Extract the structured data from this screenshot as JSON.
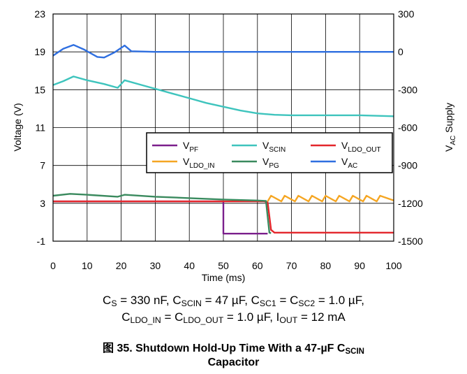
{
  "chart_data": {
    "type": "line",
    "xlabel": "Time (ms)",
    "ylabel": "Voltage (V)",
    "y2label": {
      "main": "V",
      "sub": "AC",
      "rest": " Supply"
    },
    "xlim": [
      0,
      100
    ],
    "ylim": [
      -1,
      23
    ],
    "y2lim": [
      -1500,
      300
    ],
    "x_ticks": [
      "0",
      "10",
      "20",
      "30",
      "40",
      "50",
      "60",
      "70",
      "80",
      "90",
      "100"
    ],
    "y_ticks": [
      "-1",
      "3",
      "7",
      "11",
      "15",
      "19",
      "23"
    ],
    "y2_ticks": [
      "-1500",
      "-1200",
      "-900",
      "-600",
      "-300",
      "0",
      "300"
    ],
    "grid": true,
    "legend_placement": "center-right",
    "series": [
      {
        "name": "V",
        "sub": "PF",
        "color": "#7b1f8c",
        "axis": "left",
        "points": [
          [
            0,
            3.2
          ],
          [
            50,
            3.2
          ],
          [
            50,
            -0.2
          ],
          [
            63,
            -0.2
          ]
        ]
      },
      {
        "name": "V",
        "sub": "SCIN",
        "color": "#3ec4bd",
        "axis": "left",
        "points": [
          [
            0,
            15.5
          ],
          [
            3,
            15.9
          ],
          [
            6,
            16.4
          ],
          [
            10,
            16.0
          ],
          [
            15,
            15.6
          ],
          [
            19,
            15.2
          ],
          [
            21,
            16.0
          ],
          [
            26,
            15.5
          ],
          [
            30,
            15.1
          ],
          [
            35,
            14.6
          ],
          [
            40,
            14.1
          ],
          [
            45,
            13.6
          ],
          [
            50,
            13.2
          ],
          [
            55,
            12.8
          ],
          [
            60,
            12.5
          ],
          [
            65,
            12.35
          ],
          [
            70,
            12.3
          ],
          [
            80,
            12.3
          ],
          [
            90,
            12.3
          ],
          [
            100,
            12.2
          ]
        ]
      },
      {
        "name": "V",
        "sub": "LDO_OUT",
        "color": "#e3262b",
        "axis": "left",
        "points": [
          [
            0,
            3.2
          ],
          [
            62,
            3.2
          ],
          [
            63,
            3.1
          ],
          [
            64,
            0.2
          ],
          [
            65,
            -0.1
          ],
          [
            100,
            -0.1
          ]
        ]
      },
      {
        "name": "V",
        "sub": "LDO_IN",
        "color": "#f5a623",
        "axis": "left",
        "points": [
          [
            63,
            3.2
          ],
          [
            64,
            3.8
          ],
          [
            67,
            3.2
          ],
          [
            68,
            3.8
          ],
          [
            71,
            3.2
          ],
          [
            72,
            3.8
          ],
          [
            75,
            3.2
          ],
          [
            76,
            3.8
          ],
          [
            79,
            3.2
          ],
          [
            80,
            3.8
          ],
          [
            83,
            3.2
          ],
          [
            84,
            3.8
          ],
          [
            87,
            3.2
          ],
          [
            88,
            3.8
          ],
          [
            91,
            3.2
          ],
          [
            92,
            3.8
          ],
          [
            95,
            3.2
          ],
          [
            96,
            3.8
          ],
          [
            100,
            3.3
          ]
        ]
      },
      {
        "name": "V",
        "sub": "PG",
        "color": "#3a8a5e",
        "axis": "left",
        "points": [
          [
            0,
            3.8
          ],
          [
            5,
            4.0
          ],
          [
            10,
            3.9
          ],
          [
            19,
            3.7
          ],
          [
            21,
            3.9
          ],
          [
            30,
            3.7
          ],
          [
            40,
            3.55
          ],
          [
            50,
            3.4
          ],
          [
            60,
            3.3
          ],
          [
            62.5,
            3.25
          ],
          [
            63.5,
            -0.1
          ],
          [
            64,
            -0.15
          ]
        ]
      },
      {
        "name": "V",
        "sub": "AC",
        "color": "#2f6fe0",
        "axis": "right",
        "points": [
          [
            0,
            -30
          ],
          [
            3,
            25
          ],
          [
            6,
            55
          ],
          [
            9,
            20
          ],
          [
            13,
            -40
          ],
          [
            15,
            -45
          ],
          [
            18,
            -5
          ],
          [
            21,
            50
          ],
          [
            23,
            5
          ],
          [
            30,
            0
          ],
          [
            50,
            0
          ],
          [
            100,
            0
          ]
        ]
      }
    ]
  },
  "conditions": {
    "line1": {
      "cs_label": "C",
      "cs_sub": "S",
      "cs_val": " = 330 nF, ",
      "cscin_label": "C",
      "cscin_sub": "SCIN",
      "cscin_val": " = 47 µF, ",
      "csc1_label": "C",
      "csc1_sub": "SC1",
      "eq": " = ",
      "csc2_label": "C",
      "csc2_sub": "SC2",
      "csc_val": " = 1.0 µF,"
    },
    "line2": {
      "cin_label": "C",
      "cin_sub": "LDO_IN",
      "eq": " = ",
      "cout_label": "C",
      "cout_sub": "LDO_OUT",
      "c_val": " = 1.0 µF, ",
      "iout_label": "I",
      "iout_sub": "OUT",
      "iout_val": " = 12 mA"
    }
  },
  "caption": {
    "prefix": "图 35. Shutdown Hold-Up Time With a 47-µF C",
    "sub": "SCIN",
    "line2": "Capacitor"
  }
}
